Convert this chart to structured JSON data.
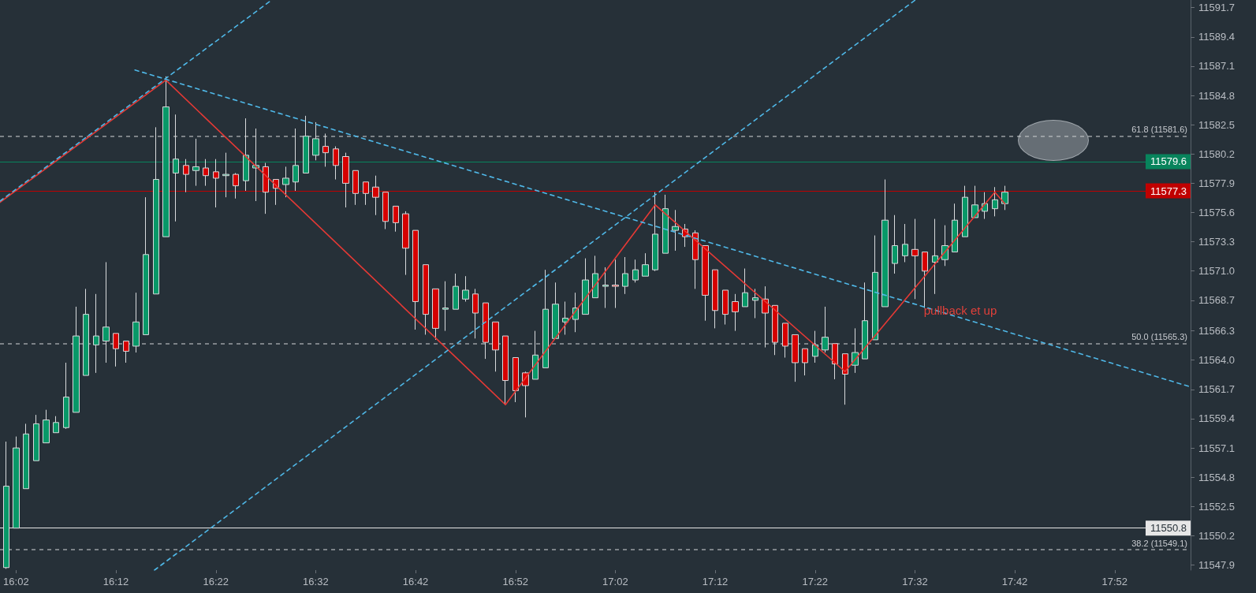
{
  "chart_data": {
    "type": "candlestick",
    "xlim": [
      16.0065,
      17.9933
    ],
    "xticks": [
      {
        "value": 16.0333,
        "label": "16:02"
      },
      {
        "value": 16.2,
        "label": "16:12"
      },
      {
        "value": 16.3667,
        "label": "16:22"
      },
      {
        "value": 16.5333,
        "label": "16:32"
      },
      {
        "value": 16.7,
        "label": "16:42"
      },
      {
        "value": 16.8667,
        "label": "16:52"
      },
      {
        "value": 17.0333,
        "label": "17:02"
      },
      {
        "value": 17.2,
        "label": "17:12"
      },
      {
        "value": 17.3667,
        "label": "17:22"
      },
      {
        "value": 17.5333,
        "label": "17:32"
      },
      {
        "value": 17.7,
        "label": "17:42"
      },
      {
        "value": 17.8667,
        "label": "17:52"
      }
    ],
    "ylim": [
      11547.5,
      11592.3
    ],
    "yticks": [
      11547.9,
      11550.2,
      11552.5,
      11554.8,
      11557.1,
      11559.4,
      11561.7,
      {
        "value": 11564,
        "label": "11564.0"
      },
      11566.3,
      11568.7,
      {
        "value": 11571,
        "label": "11571.0"
      },
      11573.3,
      11575.6,
      11577.9,
      11580.2,
      11582.5,
      11584.8,
      11587.1,
      11589.4,
      11591.7
    ],
    "grid": false,
    "marker": "none",
    "series": [
      {
        "x": [
          16.0167,
          16.0333,
          16.05,
          16.0667,
          16.0833,
          16.1,
          16.1167,
          16.1333,
          16.15,
          16.1667,
          16.1833,
          16.2,
          16.2167,
          16.2333,
          16.25,
          16.2667,
          16.2833,
          16.3,
          16.3167,
          16.3333,
          16.35,
          16.3667,
          16.3833,
          16.4,
          16.4167,
          16.4333,
          16.45,
          16.4667,
          16.4833,
          16.5,
          16.5167,
          16.5333,
          16.55,
          16.5667,
          16.5833,
          16.6,
          16.6167,
          16.6333,
          16.65,
          16.6667,
          16.6833,
          16.7,
          16.7167,
          16.7333,
          16.75,
          16.7667,
          16.7833,
          16.8,
          16.8167,
          16.8333,
          16.85,
          16.8667,
          16.8833,
          16.9,
          16.9167,
          16.9333,
          16.95,
          16.9667,
          16.9833,
          17.0,
          17.0167,
          17.0333,
          17.05,
          17.0667,
          17.0833,
          17.1,
          17.1167,
          17.1333,
          17.15,
          17.1667,
          17.1833,
          17.2,
          17.2167,
          17.2333,
          17.25,
          17.2667,
          17.2833,
          17.3,
          17.3167,
          17.3333,
          17.35,
          17.3667,
          17.3833,
          17.4,
          17.4167,
          17.4333,
          17.45,
          17.4667,
          17.4833,
          17.5,
          17.5167,
          17.5333,
          17.55,
          17.5667,
          17.5833,
          17.6,
          17.6167,
          17.6333,
          17.65,
          17.6667,
          17.6833
        ],
        "ohlc": [
          [
            11547.7,
            11557.6,
            11547.6,
            11554.1
          ],
          [
            11550.8,
            11558.0,
            11550.8,
            11557.1
          ],
          [
            11553.9,
            11559.0,
            11553.9,
            11558.2
          ],
          [
            11556.1,
            11559.7,
            11556.1,
            11559.0
          ],
          [
            11557.5,
            11560.1,
            11557.5,
            11559.3
          ],
          [
            11558.3,
            11559.6,
            11558.3,
            11559.1
          ],
          [
            11558.7,
            11563.8,
            11558.6,
            11561.1
          ],
          [
            11559.9,
            11568.2,
            11559.9,
            11565.9
          ],
          [
            11562.8,
            11569.6,
            11562.8,
            11567.6
          ],
          [
            11565.2,
            11569.2,
            11563.0,
            11565.9
          ],
          [
            11565.5,
            11571.7,
            11563.8,
            11566.6
          ],
          [
            11566.1,
            11566.1,
            11563.5,
            11564.9
          ],
          [
            11565.5,
            11565.5,
            11563.8,
            11564.7
          ],
          [
            11565.1,
            11569.3,
            11564.6,
            11567.0
          ],
          [
            11566.0,
            11576.8,
            11566.0,
            11572.3
          ],
          [
            11569.2,
            11582.3,
            11569.2,
            11578.2
          ],
          [
            11573.7,
            11586.3,
            11573.7,
            11583.9
          ],
          [
            11578.7,
            11583.3,
            11574.9,
            11579.8
          ],
          [
            11579.3,
            11579.8,
            11577.2,
            11578.6
          ],
          [
            11578.9,
            11581.4,
            11577.7,
            11579.2
          ],
          [
            11579.1,
            11579.8,
            11577.7,
            11578.5
          ],
          [
            11578.8,
            11579.8,
            11576.0,
            11578.3
          ],
          [
            11578.5,
            11580.3,
            11576.8,
            11578.6
          ],
          [
            11578.6,
            11578.7,
            11576.7,
            11577.7
          ],
          [
            11578.1,
            11583.0,
            11577.3,
            11580.1
          ],
          [
            11579.1,
            11582.2,
            11576.5,
            11579.3
          ],
          [
            11579.2,
            11579.5,
            11575.5,
            11577.2
          ],
          [
            11578.2,
            11578.2,
            11576.2,
            11577.5
          ],
          [
            11577.8,
            11579.2,
            11576.8,
            11578.3
          ],
          [
            11578.0,
            11582.2,
            11577.3,
            11579.3
          ],
          [
            11578.7,
            11583.2,
            11578.7,
            11581.6
          ],
          [
            11580.1,
            11582.7,
            11579.7,
            11581.4
          ],
          [
            11580.8,
            11581.8,
            11579.2,
            11580.3
          ],
          [
            11580.6,
            11580.8,
            11578.2,
            11579.3
          ],
          [
            11580.0,
            11580.3,
            11576.0,
            11577.9
          ],
          [
            11578.9,
            11578.9,
            11576.2,
            11577.1
          ],
          [
            11578.0,
            11578.0,
            11576.2,
            11577.1
          ],
          [
            11577.6,
            11578.5,
            11575.4,
            11576.8
          ],
          [
            11577.2,
            11577.2,
            11574.3,
            11574.9
          ],
          [
            11576.1,
            11576.1,
            11574.1,
            11574.8
          ],
          [
            11575.5,
            11575.7,
            11570.7,
            11572.8
          ],
          [
            11574.2,
            11574.2,
            11566.4,
            11568.6
          ],
          [
            11571.5,
            11571.5,
            11566.0,
            11567.6
          ],
          [
            11569.6,
            11569.6,
            11565.6,
            11566.5
          ],
          [
            11568.0,
            11570.2,
            11566.3,
            11568.1
          ],
          [
            11568.0,
            11570.8,
            11568.0,
            11569.8
          ],
          [
            11568.8,
            11570.6,
            11568.6,
            11569.5
          ],
          [
            11569.2,
            11569.6,
            11565.7,
            11567.7
          ],
          [
            11568.5,
            11568.5,
            11564.1,
            11565.4
          ],
          [
            11567.0,
            11567.0,
            11563.1,
            11564.8
          ],
          [
            11565.9,
            11565.9,
            11560.5,
            11562.4
          ],
          [
            11564.2,
            11564.2,
            11560.7,
            11561.6
          ],
          [
            11563.0,
            11563.1,
            11559.5,
            11562.0
          ],
          [
            11562.5,
            11566.3,
            11562.5,
            11564.4
          ],
          [
            11563.4,
            11571.1,
            11563.4,
            11568.0
          ],
          [
            11565.7,
            11570.1,
            11565.7,
            11568.4
          ],
          [
            11567.0,
            11568.6,
            11566.0,
            11567.3
          ],
          [
            11567.2,
            11569.3,
            11566.2,
            11568.1
          ],
          [
            11567.6,
            11572.0,
            11567.6,
            11570.3
          ],
          [
            11568.9,
            11572.2,
            11568.9,
            11570.8
          ],
          [
            11569.8,
            11571.3,
            11568.1,
            11569.9
          ],
          [
            11569.9,
            11571.9,
            11568.1,
            11569.8
          ],
          [
            11569.8,
            11572.1,
            11569.2,
            11570.8
          ],
          [
            11570.3,
            11571.9,
            11570.1,
            11571.1
          ],
          [
            11570.6,
            11572.4,
            11570.6,
            11571.5
          ],
          [
            11571.1,
            11577.2,
            11571.0,
            11573.9
          ],
          [
            11572.4,
            11577.0,
            11572.4,
            11575.9
          ],
          [
            11574.2,
            11575.8,
            11572.6,
            11574.5
          ],
          [
            11574.3,
            11574.7,
            11572.9,
            11573.7
          ],
          [
            11574.0,
            11574.2,
            11569.6,
            11571.9
          ],
          [
            11573.0,
            11573.0,
            11567.1,
            11569.1
          ],
          [
            11571.1,
            11571.1,
            11566.5,
            11567.9
          ],
          [
            11569.5,
            11569.5,
            11566.8,
            11567.6
          ],
          [
            11568.6,
            11569.2,
            11566.3,
            11567.8
          ],
          [
            11568.2,
            11571.2,
            11568.2,
            11569.3
          ],
          [
            11568.7,
            11569.6,
            11567.3,
            11568.9
          ],
          [
            11568.8,
            11569.8,
            11565.0,
            11567.7
          ],
          [
            11568.3,
            11568.3,
            11564.4,
            11565.4
          ],
          [
            11566.9,
            11566.9,
            11564.2,
            11565.1
          ],
          [
            11566.0,
            11566.0,
            11562.3,
            11563.8
          ],
          [
            11564.9,
            11564.9,
            11562.8,
            11563.8
          ],
          [
            11564.3,
            11566.3,
            11563.8,
            11565.2
          ],
          [
            11564.8,
            11568.2,
            11564.6,
            11565.8
          ],
          [
            11565.3,
            11565.3,
            11562.5,
            11563.7
          ],
          [
            11564.5,
            11564.5,
            11560.5,
            11562.9
          ],
          [
            11563.6,
            11566.5,
            11563.0,
            11564.6
          ],
          [
            11564.1,
            11570.1,
            11564.1,
            11567.1
          ],
          [
            11565.6,
            11573.8,
            11565.6,
            11570.9
          ],
          [
            11568.2,
            11578.2,
            11568.2,
            11575.0
          ],
          [
            11571.6,
            11575.4,
            11570.8,
            11573.0
          ],
          [
            11572.2,
            11574.7,
            11571.7,
            11573.1
          ],
          [
            11572.7,
            11575.1,
            11568.8,
            11572.2
          ],
          [
            11572.5,
            11572.5,
            11568.1,
            11571.0
          ],
          [
            11571.7,
            11575.1,
            11569.2,
            11572.2
          ],
          [
            11571.9,
            11574.6,
            11571.4,
            11573.0
          ],
          [
            11572.5,
            11576.3,
            11572.5,
            11575.0
          ],
          [
            11573.7,
            11577.7,
            11573.7,
            11576.8
          ],
          [
            11575.2,
            11577.7,
            11575.2,
            11576.2
          ],
          [
            11575.7,
            11577.2,
            11575.1,
            11576.3
          ],
          [
            11575.9,
            11577.6,
            11575.3,
            11576.6
          ],
          [
            11576.3,
            11577.7,
            11575.8,
            11577.2
          ]
        ],
        "colors": [
          "#089868",
          "#089868",
          "#089868",
          "#089868",
          "#089868",
          "#089868",
          "#089868",
          "#089868",
          "#089868",
          "#089868",
          "#089868",
          "#d60000",
          "#d60000",
          "#089868",
          "#089868",
          "#089868",
          "#089868",
          "#089868",
          "#d60000",
          "#089868",
          "#d60000",
          "#d60000",
          "#089868",
          "#d60000",
          "#089868",
          "#089868",
          "#d60000",
          "#d60000",
          "#089868",
          "#089868",
          "#089868",
          "#089868",
          "#d60000",
          "#d60000",
          "#d60000",
          "#d60000",
          "#d60000",
          "#d60000",
          "#d60000",
          "#d60000",
          "#d60000",
          "#d60000",
          "#d60000",
          "#d60000",
          "#089868",
          "#089868",
          "#089868",
          "#d60000",
          "#d60000",
          "#d60000",
          "#d60000",
          "#d60000",
          "#d60000",
          "#089868",
          "#089868",
          "#089868",
          "#089868",
          "#089868",
          "#089868",
          "#089868",
          "#089868",
          "#d60000",
          "#089868",
          "#089868",
          "#089868",
          "#089868",
          "#089868",
          "#089868",
          "#d60000",
          "#d60000",
          "#d60000",
          "#d60000",
          "#d60000",
          "#d60000",
          "#089868",
          "#089868",
          "#d60000",
          "#d60000",
          "#d60000",
          "#d60000",
          "#d60000",
          "#089868",
          "#089868",
          "#d60000",
          "#d60000",
          "#089868",
          "#089868",
          "#089868",
          "#089868",
          "#089868",
          "#089868",
          "#d60000",
          "#d60000",
          "#089868",
          "#089868",
          "#089868",
          "#089868",
          "#089868",
          "#089868",
          "#089868",
          "#089868"
        ]
      },
      {
        "type": "line",
        "color": "#e53935",
        "line_style": "solid",
        "x": [
          16.0065,
          16.2833,
          16.85,
          17.1,
          17.4167,
          17.6667,
          17.6833
        ],
        "values": [
          11576.4,
          11586.0,
          11560.5,
          11576.2,
          11563.1,
          11577.2,
          11576.3
        ]
      },
      {
        "type": "line",
        "color": "#4fb8e8",
        "line_style": "dashed",
        "x": [
          16.0065,
          16.46
        ],
        "values": [
          11576.5,
          11592.3
        ]
      },
      {
        "type": "line",
        "color": "#4fb8e8",
        "line_style": "dashed",
        "x": [
          16.2317,
          17.9933
        ],
        "values": [
          11586.8,
          11561.9
        ]
      },
      {
        "type": "line",
        "color": "#4fb8e8",
        "line_style": "dashed",
        "x": [
          16.2643,
          17.534
        ],
        "values": [
          11547.5,
          11592.3
        ]
      }
    ],
    "ref_lines": [
      {
        "axis": "y",
        "value": 11581.6,
        "label": "61.8 (11581.6)",
        "color": "#9a9ea3",
        "line_style": "dashed"
      },
      {
        "axis": "y",
        "value": 11565.3,
        "label": "50.0 (11565.3)",
        "color": "#9a9ea3",
        "line_style": "dashed"
      },
      {
        "axis": "y",
        "value": 11549.1,
        "label": "38.2 (11549.1)",
        "color": "#9a9ea3",
        "line_style": "dashed"
      },
      {
        "axis": "y",
        "value": 11579.6,
        "label": "11579.6",
        "color": "#08845c",
        "line_style": "solid"
      },
      {
        "axis": "y",
        "value": 11577.3,
        "label": "11577.3",
        "color": "#c00000",
        "line_style": "solid"
      },
      {
        "axis": "y",
        "value": 11550.8,
        "label": "11550.8",
        "color": "#e6e6e6",
        "line_style": "solid"
      }
    ],
    "annotations": [
      "pullback et up"
    ]
  }
}
